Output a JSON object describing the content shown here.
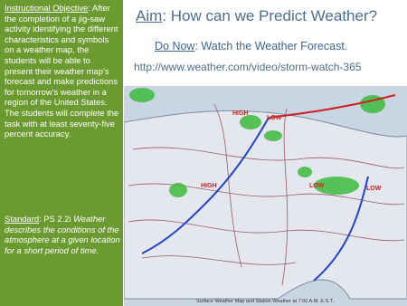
{
  "objective": {
    "label": "Instructional Objective",
    "text": ": After the completion of a jig-saw activity identifying the different characteristics and symbols on a weather map, the students will be able to present their weather map’s forecast and make predictions for tomorrow’s weather in a region of the United States.  The students will complete the task with at least seventy-five percent accuracy."
  },
  "standard": {
    "label": "Standard",
    "code": ": PS 2.2i",
    "text": "Weather describes the conditions of the atmosphere at a given location for a short period of time."
  },
  "aim": {
    "label": "Aim",
    "text": ": How can we Predict Weather?"
  },
  "do_now": {
    "label": "Do Now",
    "text": ": Watch the Weather Forecast."
  },
  "url": "http://www.weather.com/video/storm-watch-365",
  "map": {
    "caption": "Surface Weather Map and Station Weather at 7:00 A.M. E.S.T.",
    "labels": [
      "HIGH",
      "LOW",
      "HIGH",
      "LOW",
      "LOW"
    ]
  }
}
